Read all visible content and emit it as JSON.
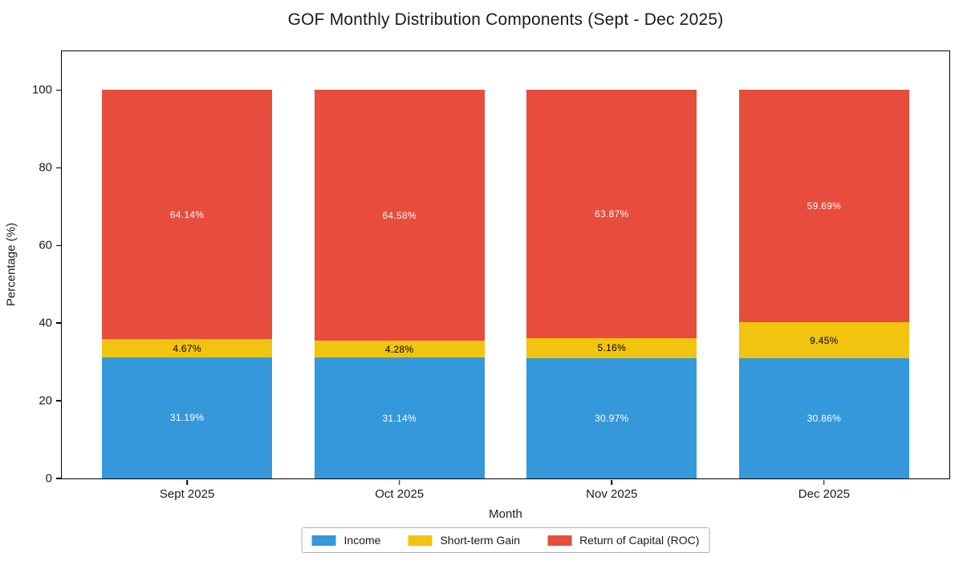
{
  "title": "GOF Monthly Distribution Components (Sept - Dec 2025)",
  "chart_data": {
    "type": "bar",
    "stacked": true,
    "title": "GOF Monthly Distribution Components (Sept - Dec 2025)",
    "xlabel": "Month",
    "ylabel": "Percentage (%)",
    "categories": [
      "Sept 2025",
      "Oct 2025",
      "Nov 2025",
      "Dec 2025"
    ],
    "series": [
      {
        "name": "Income",
        "color": "#3498db",
        "label_color": "#ffffff",
        "values": [
          31.19,
          31.14,
          30.97,
          30.86
        ],
        "labels": [
          "31.19%",
          "31.14%",
          "30.97%",
          "30.86%"
        ]
      },
      {
        "name": "Short-term Gain",
        "color": "#f1c40f",
        "label_color": "#000000",
        "values": [
          4.67,
          4.28,
          5.16,
          9.45
        ],
        "labels": [
          "4.67%",
          "4.28%",
          "5.16%",
          "9.45%"
        ]
      },
      {
        "name": "Return of Capital (ROC)",
        "color": "#e74c3c",
        "label_color": "#ffffff",
        "values": [
          64.14,
          64.58,
          63.87,
          59.69
        ],
        "labels": [
          "64.14%",
          "64.58%",
          "63.87%",
          "59.69%"
        ]
      }
    ],
    "yticks": [
      0,
      20,
      40,
      60,
      80,
      100
    ],
    "ylim": [
      0,
      110
    ],
    "bar_width": 0.8,
    "x_margin": 0.59,
    "grid": false,
    "legend_position": "bottom-center"
  }
}
